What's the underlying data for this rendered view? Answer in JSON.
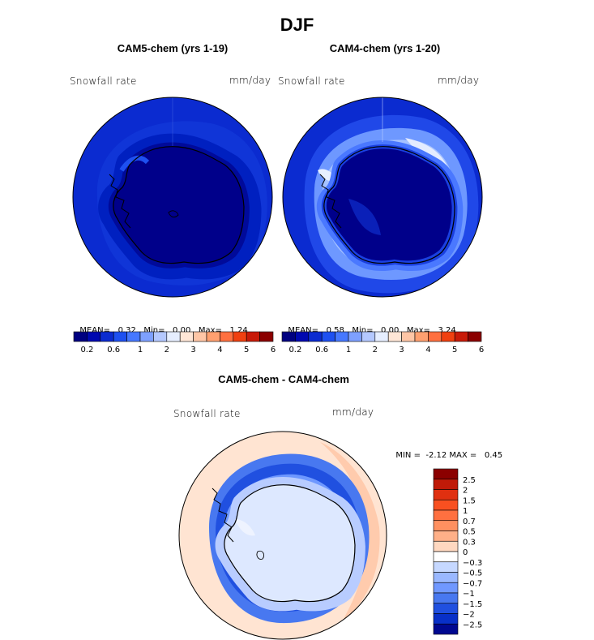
{
  "figure": {
    "season": "DJF",
    "variable": "Snowfall rate",
    "units": "mm/day"
  },
  "chart_data": [
    {
      "type": "heatmap",
      "projection": "south-polar stereographic",
      "title": "CAM5-chem (yrs 1-19)",
      "field_label": "Snowfall rate",
      "units": "mm/day",
      "stats": {
        "mean_label": "MEAN=",
        "mean": "0.32",
        "min_label": "Min=",
        "min": "0.00",
        "max_label": "Max=",
        "max": "1.24"
      },
      "colorbar": {
        "orientation": "horizontal",
        "tick_labels": [
          "0.2",
          "0.6",
          "1",
          "2",
          "3",
          "4",
          "5",
          "6"
        ],
        "colors": [
          "#000080",
          "#0008b0",
          "#0b2bd0",
          "#1e50f0",
          "#4678ff",
          "#7ea0ff",
          "#b4c8ff",
          "#e6eeff",
          "#ffe6d6",
          "#ffc6a6",
          "#ffa070",
          "#ff7040",
          "#f04010",
          "#c81a08",
          "#8b0000"
        ]
      },
      "field_summary": {
        "interior": "0.0-0.2",
        "coast_ring": "0.2-0.6",
        "ocean": "0.2-0.6"
      }
    },
    {
      "type": "heatmap",
      "projection": "south-polar stereographic",
      "title": "CAM4-chem (yrs 1-20)",
      "field_label": "Snowfall rate",
      "units": "mm/day",
      "stats": {
        "mean_label": "MEAN=",
        "mean": "0.58",
        "min_label": "Min=",
        "min": "0.00",
        "max_label": "Max=",
        "max": "3.24"
      },
      "colorbar": {
        "orientation": "horizontal",
        "tick_labels": [
          "0.2",
          "0.6",
          "1",
          "2",
          "3",
          "4",
          "5",
          "6"
        ],
        "colors": [
          "#000080",
          "#0008b0",
          "#0b2bd0",
          "#1e50f0",
          "#4678ff",
          "#7ea0ff",
          "#b4c8ff",
          "#e6eeff",
          "#ffe6d6",
          "#ffc6a6",
          "#ffa070",
          "#ff7040",
          "#f04010",
          "#c81a08",
          "#8b0000"
        ]
      },
      "field_summary": {
        "interior": "0.0-0.2",
        "coast_ring": "1-2",
        "ocean": "0.2-0.6"
      }
    },
    {
      "type": "heatmap",
      "projection": "south-polar stereographic",
      "title": "CAM5-chem - CAM4-chem",
      "field_label": "Snowfall rate",
      "units": "mm/day",
      "stats": {
        "min_label": "MIN =",
        "min": "-2.12",
        "max_label": "MAX =",
        "max": "0.45"
      },
      "colorbar": {
        "orientation": "vertical",
        "tick_labels": [
          "2.5",
          "2",
          "1.5",
          "1",
          "0.7",
          "0.5",
          "0.3",
          "0",
          "−0.3",
          "−0.5",
          "−0.7",
          "−1",
          "−1.5",
          "−2",
          "−2.5"
        ],
        "colors": [
          "#8b0000",
          "#c01a08",
          "#e03010",
          "#f85020",
          "#ff7040",
          "#ff9060",
          "#ffb088",
          "#ffd8c0",
          "#ffffff",
          "#c6d8ff",
          "#9ab8ff",
          "#7098ff",
          "#4878f0",
          "#2050e0",
          "#0830c8",
          "#000890"
        ]
      },
      "field_summary": {
        "interior": "-0.3-0",
        "coast_ring": "-1 to -0.5",
        "ocean": "0-0.3"
      }
    }
  ]
}
